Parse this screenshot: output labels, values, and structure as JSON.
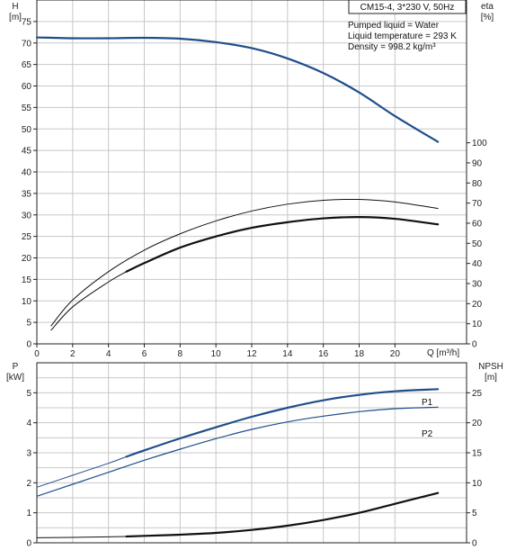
{
  "colors": {
    "blue": "#1f4e8a",
    "black": "#111111",
    "grid": "#c8c8c8"
  },
  "info": {
    "title": "CM15-4, 3*230 V, 50Hz",
    "lines": [
      "Pumped liquid = Water",
      "Liquid temperature = 293 K",
      "Density = 998.2 kg/m³"
    ]
  },
  "chart_data": [
    {
      "type": "line",
      "name": "upper",
      "xlabel": "Q [m³/h]",
      "x_ticks": [
        0,
        2,
        4,
        6,
        8,
        10,
        12,
        14,
        16,
        18,
        20
      ],
      "xlim": [
        0,
        24
      ],
      "ylabel_left": "H",
      "ylabel_left_unit": "[m]",
      "ylim_left": [
        0,
        80
      ],
      "left_ticks": [
        0,
        5,
        10,
        15,
        20,
        25,
        30,
        35,
        40,
        45,
        50,
        55,
        60,
        65,
        70,
        75
      ],
      "ylabel_right": "eta",
      "ylabel_right_unit": "[%]",
      "ylim_right": [
        0,
        171
      ],
      "right_ticks": [
        0,
        10,
        20,
        30,
        40,
        50,
        60,
        70,
        80,
        90,
        100
      ],
      "grid": true,
      "series": [
        {
          "key": "head",
          "axis": "left",
          "color": "blue",
          "width": 2.2,
          "x": [
            0,
            2,
            4,
            6,
            8,
            10,
            12,
            14,
            16,
            18,
            20,
            22.4
          ],
          "y": [
            71.3,
            71.1,
            71.1,
            71.2,
            71.0,
            70.2,
            68.8,
            66.4,
            63.0,
            58.5,
            53.0,
            47.0
          ]
        },
        {
          "key": "eta-thin",
          "axis": "left",
          "color": "black",
          "width": 1,
          "x": [
            0.8,
            2,
            4,
            6,
            8,
            10,
            12,
            14,
            16,
            18,
            20,
            22.4
          ],
          "y": [
            4.2,
            10.2,
            16.8,
            21.8,
            25.6,
            28.6,
            30.9,
            32.5,
            33.4,
            33.6,
            33.0,
            31.5
          ]
        },
        {
          "key": "eta-thick",
          "axis": "left",
          "color": "black",
          "width": 2.2,
          "dashed_until": 5,
          "x": [
            0.8,
            2,
            4,
            5,
            6,
            8,
            10,
            12,
            14,
            16,
            18,
            20,
            22.4
          ],
          "y": [
            3.2,
            8.6,
            14.4,
            16.8,
            18.8,
            22.4,
            25.0,
            27.0,
            28.3,
            29.2,
            29.5,
            29.1,
            27.8
          ]
        }
      ]
    },
    {
      "type": "line",
      "name": "lower",
      "ylabel_left": "P",
      "ylabel_left_unit": "[kW]",
      "ylim_left": [
        0,
        6
      ],
      "left_ticks": [
        0,
        1,
        2,
        3,
        4,
        5
      ],
      "ylabel_right": "NPSH",
      "ylabel_right_unit": "[m]",
      "ylim_right": [
        0,
        30
      ],
      "right_ticks": [
        0,
        5,
        10,
        15,
        20,
        25
      ],
      "grid": true,
      "series": [
        {
          "key": "P1",
          "label": "P1",
          "axis": "left",
          "color": "blue",
          "width": 2.2,
          "dashed_until": 5,
          "x": [
            0,
            2,
            4,
            5,
            6,
            8,
            10,
            12,
            14,
            16,
            18,
            20,
            22.4
          ],
          "y": [
            1.85,
            2.25,
            2.65,
            2.87,
            3.08,
            3.48,
            3.85,
            4.2,
            4.5,
            4.75,
            4.93,
            5.05,
            5.12
          ]
        },
        {
          "key": "P2",
          "label": "P2",
          "axis": "left",
          "color": "blue",
          "width": 1.2,
          "x": [
            0,
            2,
            4,
            6,
            8,
            10,
            12,
            14,
            16,
            18,
            20,
            22.4
          ],
          "y": [
            1.55,
            1.95,
            2.35,
            2.75,
            3.12,
            3.47,
            3.78,
            4.03,
            4.22,
            4.37,
            4.47,
            4.52
          ]
        },
        {
          "key": "NPSH",
          "axis": "right",
          "color": "black",
          "width": 2.2,
          "dashed_until": 5,
          "x": [
            0,
            2,
            4,
            5,
            6,
            8,
            10,
            12,
            14,
            16,
            18,
            20,
            22.4
          ],
          "y": [
            0.85,
            0.9,
            1.0,
            1.05,
            1.15,
            1.35,
            1.65,
            2.15,
            2.85,
            3.8,
            5.0,
            6.5,
            8.3
          ]
        }
      ]
    }
  ]
}
